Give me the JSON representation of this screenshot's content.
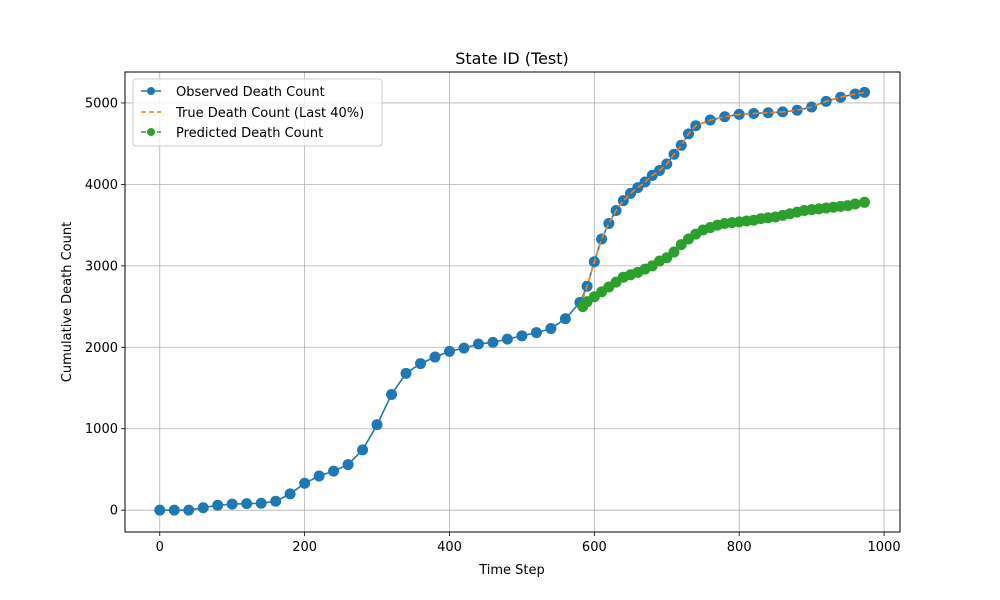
{
  "chart_data": {
    "type": "line",
    "title": "State ID (Test)",
    "xlabel": "Time Step",
    "ylabel": "Cumulative Death Count",
    "xlim": [
      -48,
      1022
    ],
    "ylim": [
      -268,
      5380
    ],
    "xticks": [
      0,
      200,
      400,
      600,
      800,
      1000
    ],
    "yticks": [
      0,
      1000,
      2000,
      3000,
      4000,
      5000
    ],
    "xtick_labels": [
      "0",
      "200",
      "400",
      "600",
      "800",
      "1000"
    ],
    "ytick_labels": [
      "0",
      "1000",
      "2000",
      "3000",
      "4000",
      "5000"
    ],
    "grid": true,
    "legend_position": "top-left",
    "series": [
      {
        "name": "Observed Death Count",
        "color": "#1f77b4",
        "style": "solid-marker",
        "x": [
          0,
          20,
          40,
          60,
          80,
          100,
          120,
          140,
          160,
          180,
          200,
          220,
          240,
          260,
          280,
          300,
          320,
          340,
          360,
          380,
          400,
          420,
          440,
          460,
          480,
          500,
          520,
          540,
          560,
          580,
          590,
          600,
          610,
          620,
          630,
          640,
          650,
          660,
          670,
          680,
          690,
          700,
          710,
          720,
          730,
          740,
          760,
          780,
          800,
          820,
          840,
          860,
          880,
          900,
          920,
          940,
          960,
          973
        ],
        "y": [
          0,
          0,
          0,
          30,
          60,
          75,
          80,
          85,
          110,
          200,
          330,
          420,
          480,
          560,
          740,
          1050,
          1420,
          1680,
          1800,
          1880,
          1950,
          1990,
          2040,
          2060,
          2100,
          2140,
          2180,
          2230,
          2350,
          2550,
          2750,
          3050,
          3330,
          3520,
          3680,
          3800,
          3890,
          3960,
          4030,
          4110,
          4170,
          4250,
          4370,
          4480,
          4620,
          4720,
          4790,
          4830,
          4860,
          4870,
          4880,
          4890,
          4910,
          4950,
          5020,
          5070,
          5110,
          5130
        ]
      },
      {
        "name": "True Death Count (Last 40%)",
        "color": "#ff7f0e",
        "style": "dashed",
        "x": [
          584,
          590,
          600,
          610,
          620,
          630,
          640,
          650,
          660,
          670,
          680,
          690,
          700,
          710,
          720,
          730,
          740,
          760,
          780,
          800,
          820,
          840,
          860,
          880,
          900,
          920,
          940,
          960,
          973
        ],
        "y": [
          2600,
          2750,
          3050,
          3330,
          3520,
          3680,
          3800,
          3890,
          3960,
          4030,
          4110,
          4170,
          4250,
          4370,
          4480,
          4620,
          4720,
          4790,
          4830,
          4860,
          4870,
          4880,
          4890,
          4910,
          4950,
          5020,
          5070,
          5110,
          5130
        ]
      },
      {
        "name": "Predicted Death Count",
        "color": "#2ca02c",
        "style": "dashed-marker",
        "x": [
          584,
          590,
          600,
          610,
          620,
          630,
          640,
          650,
          660,
          670,
          680,
          690,
          700,
          710,
          720,
          730,
          740,
          750,
          760,
          770,
          780,
          790,
          800,
          810,
          820,
          830,
          840,
          850,
          860,
          870,
          880,
          890,
          900,
          910,
          920,
          930,
          940,
          950,
          960,
          973
        ],
        "y": [
          2500,
          2560,
          2620,
          2680,
          2740,
          2800,
          2860,
          2890,
          2920,
          2960,
          3000,
          3060,
          3100,
          3170,
          3260,
          3330,
          3390,
          3440,
          3470,
          3500,
          3520,
          3530,
          3540,
          3550,
          3560,
          3580,
          3590,
          3600,
          3620,
          3640,
          3660,
          3680,
          3690,
          3700,
          3710,
          3720,
          3730,
          3740,
          3760,
          3780
        ]
      }
    ]
  }
}
